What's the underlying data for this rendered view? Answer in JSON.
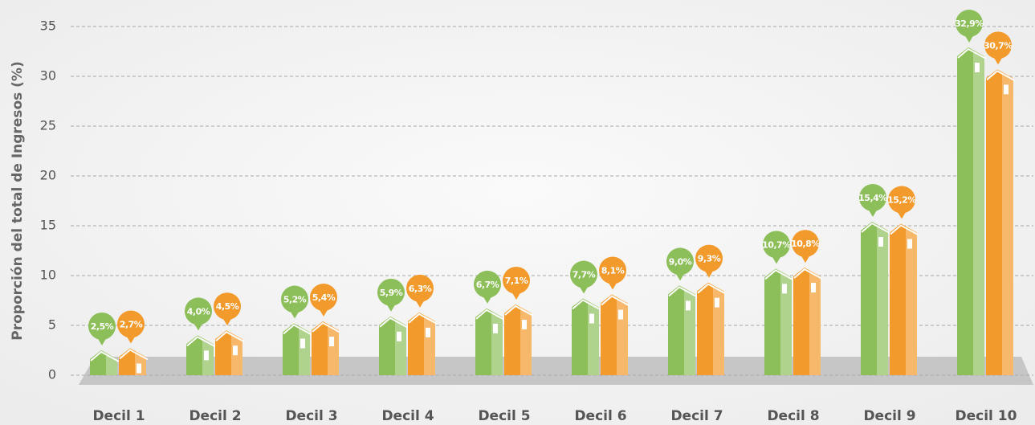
{
  "chart_data": {
    "type": "bar",
    "y_label": "Proporción del total de Ingresos (%)",
    "categories": [
      "Decil 1",
      "Decil 2",
      "Decil 3",
      "Decil 4",
      "Decil 5",
      "Decil 6",
      "Decil 7",
      "Decil 8",
      "Decil 9",
      "Decil 10"
    ],
    "series": [
      {
        "color": "#8cbf5a",
        "values": [
          2.5,
          4.0,
          5.2,
          5.9,
          6.7,
          7.7,
          9.0,
          10.7,
          15.4,
          32.9
        ],
        "value_labels": [
          "2,5%",
          "4,0%",
          "5,2%",
          "5,9%",
          "6,7%",
          "7,7%",
          "9,0%",
          "10,7%",
          "15,4%",
          "32,9%"
        ]
      },
      {
        "color": "#f39a2c",
        "values": [
          2.7,
          4.5,
          5.4,
          6.3,
          7.1,
          8.1,
          9.3,
          10.8,
          15.2,
          30.7
        ],
        "value_labels": [
          "2,7%",
          "4,5%",
          "5,4%",
          "6,3%",
          "7,1%",
          "8,1%",
          "9,3%",
          "10,8%",
          "15,2%",
          "30,7%"
        ]
      }
    ],
    "ylim": [
      0,
      35
    ],
    "yticks": [
      0,
      5,
      10,
      15,
      20,
      25,
      30,
      35
    ],
    "grid": true
  }
}
